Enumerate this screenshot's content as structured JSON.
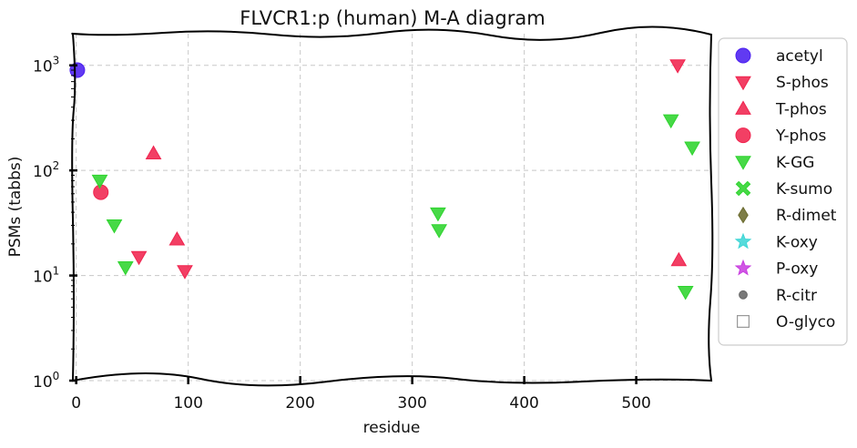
{
  "chart_data": {
    "type": "scatter",
    "title": "FLVCR1:p (human) M-A diagram",
    "xlabel": "residue",
    "ylabel": "PSMs (tabbs)",
    "xlim": [
      -3,
      567
    ],
    "ylim": [
      1,
      2000
    ],
    "yscale": "log",
    "grid": true,
    "legend_position": "outside-right",
    "x_ticks": [
      "0",
      "100",
      "200",
      "300",
      "400",
      "500"
    ],
    "y_ticks": [
      {
        "value": 1,
        "base": "10",
        "exp": "0"
      },
      {
        "value": 10,
        "base": "10",
        "exp": "1"
      },
      {
        "value": 100,
        "base": "10",
        "exp": "2"
      },
      {
        "value": 1000,
        "base": "10",
        "exp": "3"
      }
    ],
    "series": [
      {
        "name": "acetyl",
        "marker": "circle",
        "color": "#4b1ff0",
        "points": [
          [
            1,
            900
          ]
        ]
      },
      {
        "name": "S-phos",
        "marker": "triangle-down",
        "color": "#f0244f",
        "points": [
          [
            56,
            15
          ],
          [
            97,
            11
          ],
          [
            537,
            1000
          ]
        ]
      },
      {
        "name": "T-phos",
        "marker": "triangle-up",
        "color": "#f0244f",
        "points": [
          [
            69,
            145
          ],
          [
            90,
            22
          ],
          [
            538,
            14
          ]
        ]
      },
      {
        "name": "Y-phos",
        "marker": "circle",
        "color": "#f0244f",
        "points": [
          [
            22,
            62
          ]
        ]
      },
      {
        "name": "K-GG",
        "marker": "triangle-down",
        "color": "#2ed42e",
        "points": [
          [
            21,
            80
          ],
          [
            34,
            30
          ],
          [
            44,
            12
          ],
          [
            323,
            39
          ],
          [
            324,
            27
          ],
          [
            531,
            300
          ],
          [
            544,
            7
          ],
          [
            550,
            165
          ]
        ]
      },
      {
        "name": "K-sumo",
        "marker": "x",
        "color": "#2ed42e",
        "points": []
      },
      {
        "name": "R-dimet",
        "marker": "diamond",
        "color": "#6b6b2e",
        "points": []
      },
      {
        "name": "K-oxy",
        "marker": "star",
        "color": "#3fd6d6",
        "points": []
      },
      {
        "name": "P-oxy",
        "marker": "star",
        "color": "#c93fe0",
        "points": []
      },
      {
        "name": "R-citr",
        "marker": "dot",
        "color": "#666666",
        "points": []
      },
      {
        "name": "O-glyco",
        "marker": "square-open",
        "color": "#999999",
        "points": []
      }
    ]
  }
}
